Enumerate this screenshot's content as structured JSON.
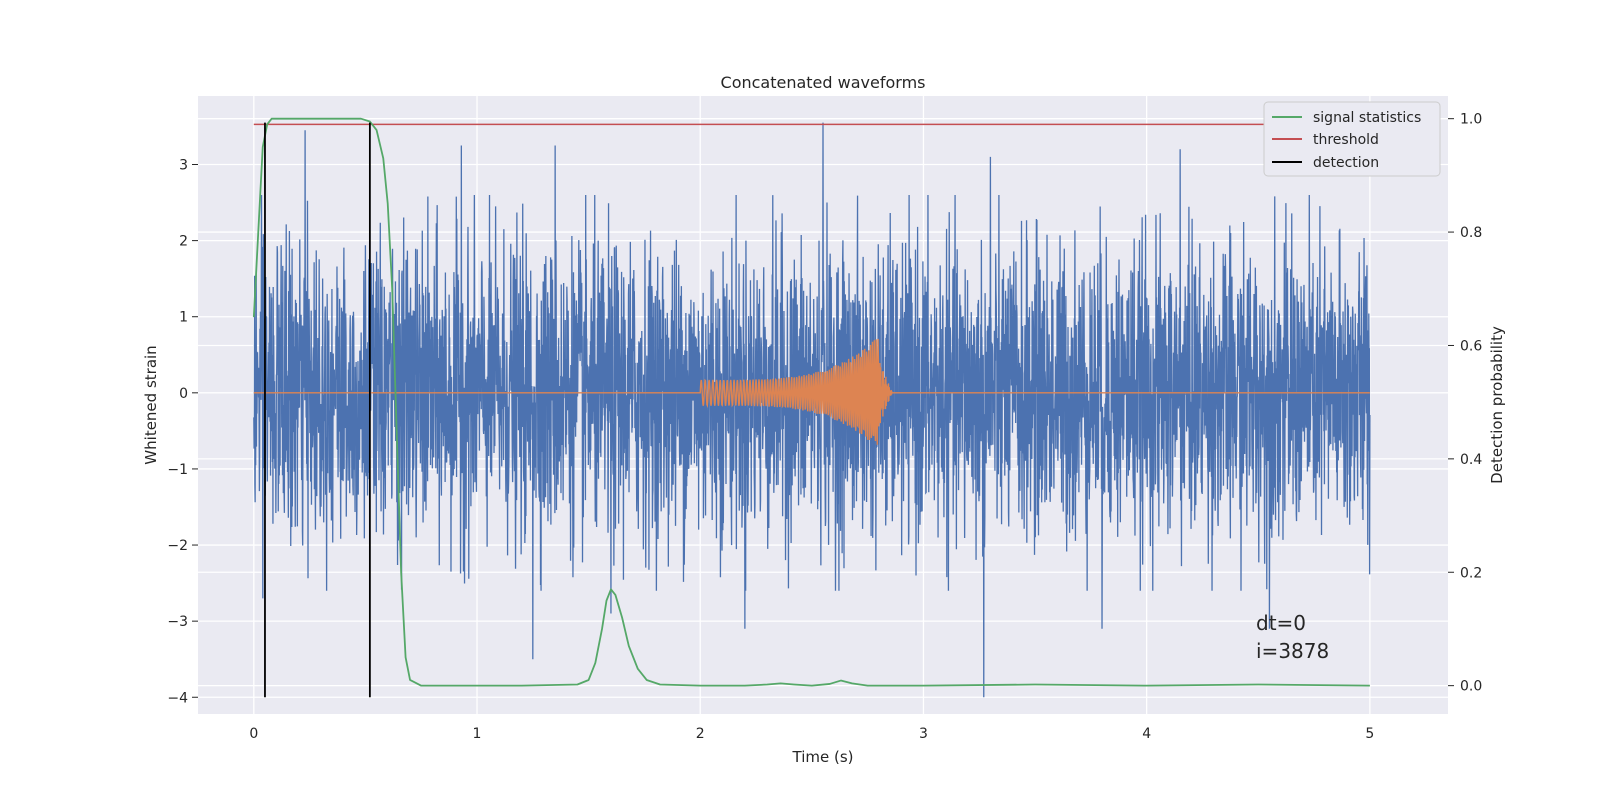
{
  "chart_data": {
    "type": "line",
    "title": "Concatenated waveforms",
    "xlabel": "Time (s)",
    "ylabel": "Whitened strain",
    "ylabel_right": "Detection probability",
    "xlim": [
      -0.25,
      5.35
    ],
    "ylim": [
      -4.22,
      3.9
    ],
    "ylim_right": [
      -0.05,
      1.04
    ],
    "x_ticks": [
      0,
      1,
      2,
      3,
      4,
      5
    ],
    "x_tick_labels": [
      "0",
      "1",
      "2",
      "3",
      "4",
      "5"
    ],
    "y_ticks": [
      -4,
      -3,
      -2,
      -1,
      0,
      1,
      2,
      3
    ],
    "y_tick_labels": [
      "−4",
      "−3",
      "−2",
      "−1",
      "0",
      "1",
      "2",
      "3"
    ],
    "y_right_ticks": [
      0.0,
      0.2,
      0.4,
      0.6,
      0.8,
      1.0
    ],
    "y_right_tick_labels": [
      "0.0",
      "0.2",
      "0.4",
      "0.6",
      "0.8",
      "1.0"
    ],
    "grid": true,
    "legend_position": "top-right",
    "background_color": "#eaeaf2",
    "series": [
      {
        "name": "signal statistics",
        "axis": "right",
        "color": "#55a868",
        "x": [
          0.0,
          0.02,
          0.04,
          0.06,
          0.08,
          0.1,
          0.2,
          0.3,
          0.4,
          0.48,
          0.52,
          0.55,
          0.58,
          0.6,
          0.62,
          0.64,
          0.66,
          0.68,
          0.7,
          0.75,
          0.9,
          1.2,
          1.45,
          1.5,
          1.53,
          1.56,
          1.58,
          1.6,
          1.62,
          1.65,
          1.68,
          1.72,
          1.76,
          1.82,
          2.0,
          2.2,
          2.3,
          2.36,
          2.42,
          2.5,
          2.58,
          2.63,
          2.68,
          2.75,
          3.0,
          3.5,
          4.0,
          4.5,
          5.0
        ],
        "y": [
          0.65,
          0.8,
          0.95,
          0.99,
          1.0,
          1.0,
          1.0,
          1.0,
          1.0,
          1.0,
          0.995,
          0.98,
          0.93,
          0.85,
          0.7,
          0.45,
          0.2,
          0.05,
          0.01,
          0.0,
          0.0,
          0.0,
          0.002,
          0.01,
          0.04,
          0.1,
          0.15,
          0.17,
          0.16,
          0.12,
          0.07,
          0.03,
          0.01,
          0.002,
          0.0,
          0.0,
          0.002,
          0.004,
          0.002,
          0.0,
          0.003,
          0.009,
          0.004,
          0.0,
          0.0,
          0.002,
          0.0,
          0.002,
          0.0
        ]
      },
      {
        "name": "threshold",
        "axis": "right",
        "color": "#c44e52",
        "x": [
          0.0,
          5.0
        ],
        "y": [
          0.99,
          0.99
        ]
      },
      {
        "name": "detection",
        "axis": "left",
        "color": "#000000",
        "segments": [
          {
            "x": 0.05,
            "y": [
              -4.0,
              3.55
            ]
          },
          {
            "x": 0.52,
            "y": [
              -4.0,
              3.55
            ]
          }
        ]
      },
      {
        "axis": "left",
        "color": "#4c72b0",
        "kind": "noise",
        "x_range": [
          0.0,
          5.0
        ],
        "typical_range": [
          -1.6,
          1.6
        ],
        "notable_spikes": [
          {
            "x": 0.23,
            "y": 3.45
          },
          {
            "x": 0.93,
            "y": 3.25
          },
          {
            "x": 1.35,
            "y": 3.25
          },
          {
            "x": 2.55,
            "y": 3.55
          },
          {
            "x": 3.3,
            "y": 3.1
          },
          {
            "x": 4.15,
            "y": 3.2
          },
          {
            "x": 0.04,
            "y": -2.7
          },
          {
            "x": 1.25,
            "y": -3.5
          },
          {
            "x": 1.6,
            "y": -2.9
          },
          {
            "x": 2.2,
            "y": -3.1
          },
          {
            "x": 3.27,
            "y": -4.0
          },
          {
            "x": 3.8,
            "y": -3.1
          },
          {
            "x": 4.55,
            "y": -3.1
          }
        ]
      },
      {
        "axis": "left",
        "color": "#dd8452",
        "kind": "chirp",
        "x_range": [
          0.0,
          5.0
        ],
        "chirp_start": 2.0,
        "chirp_merger": 2.8,
        "start_amplitude": 0.17,
        "peak_amplitude": 0.75
      }
    ],
    "annotations": [
      "dt=0",
      "i=3878"
    ]
  }
}
